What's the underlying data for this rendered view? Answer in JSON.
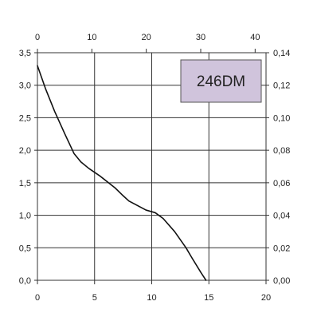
{
  "chart_data": {
    "type": "line",
    "title": "",
    "xlabel": "",
    "ylabel": "",
    "x_bottom": {
      "lim": [
        0,
        20
      ],
      "ticks": [
        0,
        5,
        10,
        15,
        20
      ],
      "tick_labels": [
        "0",
        "5",
        "10",
        "15",
        "20"
      ]
    },
    "x_top": {
      "lim": [
        0,
        42
      ],
      "ticks": [
        0,
        10,
        20,
        30,
        40
      ],
      "tick_labels": [
        "0",
        "10",
        "20",
        "30",
        "40"
      ]
    },
    "y_left": {
      "lim": [
        0,
        3.5
      ],
      "ticks": [
        0,
        0.5,
        1.0,
        1.5,
        2.0,
        2.5,
        3.0,
        3.5
      ],
      "tick_labels": [
        "0,0",
        "0,5",
        "1,0",
        "1,5",
        "2,0",
        "2,5",
        "3,0",
        "3,5"
      ]
    },
    "y_right": {
      "lim": [
        0,
        0.14
      ],
      "ticks": [
        0,
        0.02,
        0.04,
        0.06,
        0.08,
        0.1,
        0.12,
        0.14
      ],
      "tick_labels": [
        "0,00",
        "0,02",
        "0,04",
        "0,06",
        "0,08",
        "0,10",
        "0,12",
        "0,14"
      ]
    },
    "grid": true,
    "badge": {
      "text": "246DM",
      "fill": "#d0c4dc"
    },
    "series": [
      {
        "color": "#111111",
        "points": [
          [
            0,
            3.3
          ],
          [
            0.7,
            2.95
          ],
          [
            1.5,
            2.6
          ],
          [
            2.4,
            2.25
          ],
          [
            3.2,
            1.95
          ],
          [
            3.8,
            1.82
          ],
          [
            4.5,
            1.72
          ],
          [
            5.5,
            1.6
          ],
          [
            6.8,
            1.42
          ],
          [
            7.5,
            1.3
          ],
          [
            8.0,
            1.22
          ],
          [
            9.5,
            1.08
          ],
          [
            10.3,
            1.04
          ],
          [
            11.0,
            0.95
          ],
          [
            12.0,
            0.75
          ],
          [
            13.0,
            0.5
          ],
          [
            13.5,
            0.35
          ],
          [
            14.3,
            0.12
          ],
          [
            14.75,
            0.0
          ]
        ]
      }
    ]
  }
}
